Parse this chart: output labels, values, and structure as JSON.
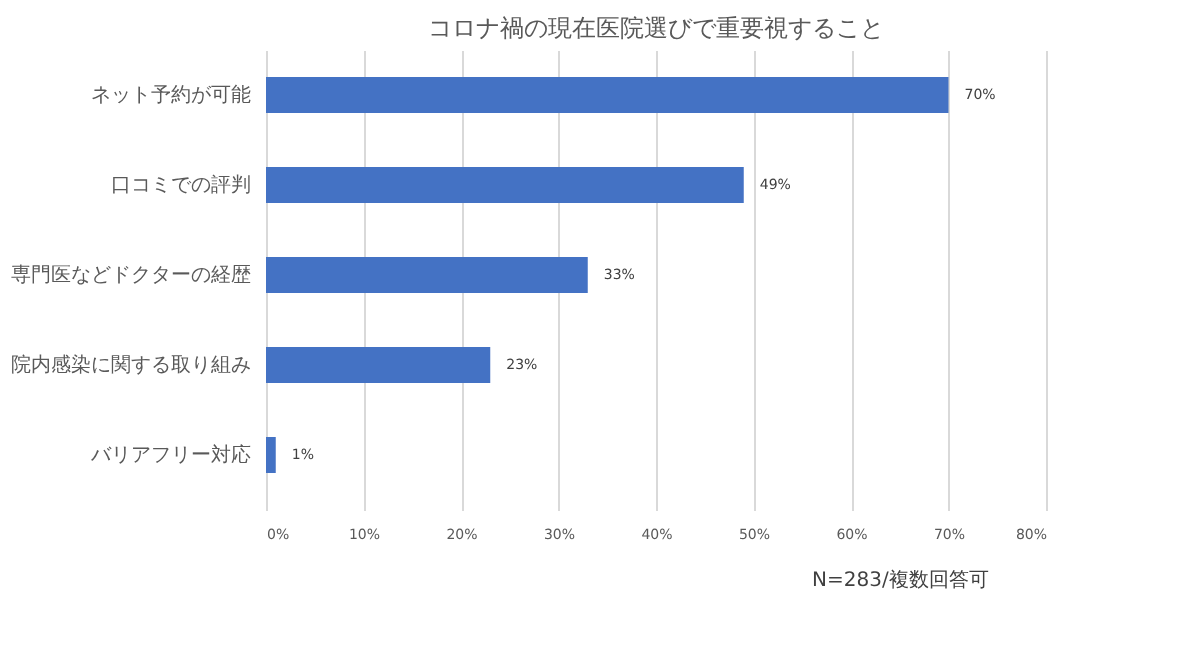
{
  "chart_data": {
    "type": "bar",
    "orientation": "horizontal",
    "title": "コロナ禍の現在医院選びで重要視すること",
    "categories": [
      "ネット予約が可能",
      "口コミでの評判",
      "専門医などドクターの経歴",
      "院内感染に関する取り組み",
      "バリアフリー対応"
    ],
    "values": [
      70,
      49,
      33,
      23,
      1
    ],
    "value_labels": [
      "70%",
      "49%",
      "33%",
      "23%",
      "1%"
    ],
    "color": "#4472c4",
    "xlim": [
      0,
      80
    ],
    "xticks": [
      {
        "value": 0,
        "label": "0%"
      },
      {
        "value": 10,
        "label": "10%"
      },
      {
        "value": 20,
        "label": "20%"
      },
      {
        "value": 30,
        "label": "30%"
      },
      {
        "value": 40,
        "label": "40%"
      },
      {
        "value": 50,
        "label": "50%"
      },
      {
        "value": 60,
        "label": "60%"
      },
      {
        "value": 70,
        "label": "70%"
      },
      {
        "value": 80,
        "label": "80%"
      }
    ],
    "grid": "x",
    "annotations": [
      "N=283/複数回答可"
    ]
  }
}
